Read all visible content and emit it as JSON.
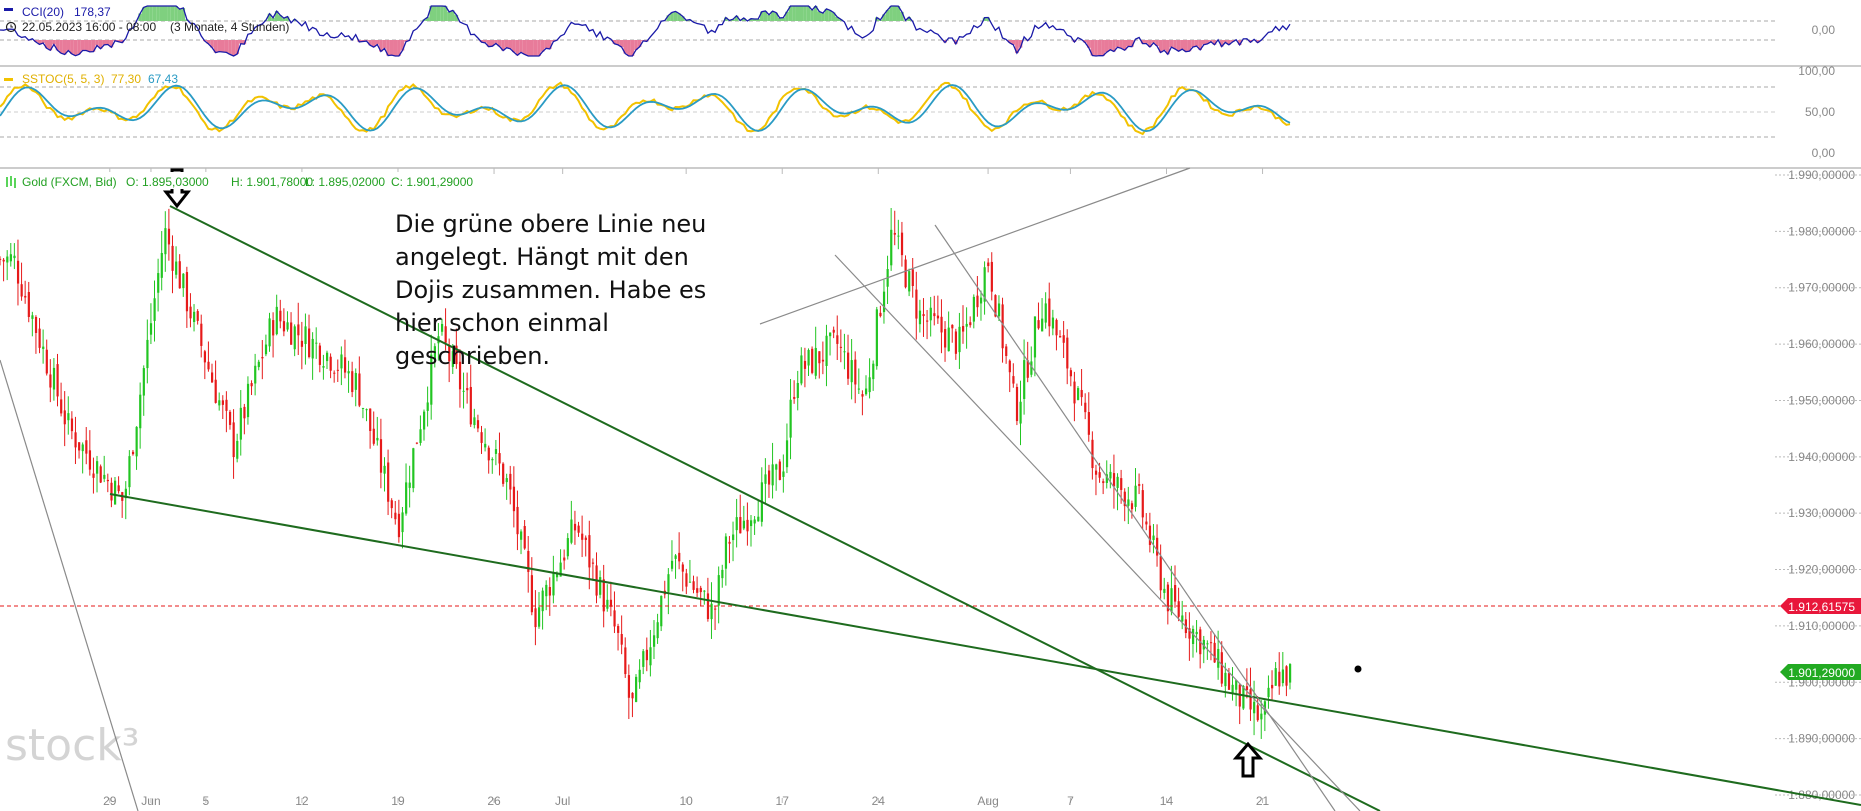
{
  "colors": {
    "cci_line": "#1a1aa8",
    "stoch_k": "#f2c200",
    "stoch_d": "#2a9bc4",
    "up": "#22c522",
    "down": "#e61a1a",
    "trend": "#1e6b1e",
    "thin": "#8a8a8a",
    "last_badge": "#22aa22",
    "level_badge": "#e8173b"
  },
  "cci": {
    "label": "CCI(20)",
    "value": "178,37",
    "date_range": "22.05.2023 16:00 - 08:00",
    "period": "(3 Monate, 4 Stunden)",
    "axis_label": "0,00"
  },
  "sstoc": {
    "label": "SSTOC(5, 5, 3)",
    "k_value": "77,30",
    "d_value": "67,43",
    "axis": [
      "100,00",
      "50,00",
      "0,00"
    ]
  },
  "main": {
    "title": "Gold (FXCM, Bid)",
    "open": "O: 1.895,03000",
    "high": "H: 1.901,78000",
    "low": "L: 1.895,02000",
    "close": "C: 1.901,29000",
    "level_badge": "1.912,61575",
    "last_badge": "1.901,29000",
    "annotation": [
      "Die grüne obere Linie neu",
      "angelegt. Hängt mit den",
      "Dojis zusammen. Habe es",
      "hier schon einmal",
      "geschrieben."
    ],
    "watermark": "stock³"
  },
  "chart_data": {
    "type": "candlestick",
    "title": "Gold (FXCM, Bid)",
    "y_ticks": [
      "1.990,00000",
      "1.980,00000",
      "1.970,00000",
      "1.960,00000",
      "1.950,00000",
      "1.940,00000",
      "1.930,00000",
      "1.920,00000",
      "1.910,00000",
      "1.900,00000",
      "1.890,00000",
      "1.880,00000"
    ],
    "x_ticks": [
      "29",
      "Jun",
      "5",
      "12",
      "19",
      "26",
      "Jul",
      "10",
      "17",
      "24",
      "Aug",
      "7",
      "14",
      "21"
    ],
    "ylim": [
      1880,
      1990
    ],
    "last_close": 1901.29,
    "horizontal_level": 1912.61575,
    "approx_close_path": [
      {
        "date": "2023-05-22",
        "close": 1975
      },
      {
        "date": "2023-05-26",
        "close": 1945
      },
      {
        "date": "2023-05-30",
        "close": 1932
      },
      {
        "date": "2023-06-02",
        "close": 1980
      },
      {
        "date": "2023-06-07",
        "close": 1942
      },
      {
        "date": "2023-06-10",
        "close": 1965
      },
      {
        "date": "2023-06-14",
        "close": 1958
      },
      {
        "date": "2023-06-16",
        "close": 1953
      },
      {
        "date": "2023-06-19",
        "close": 1928
      },
      {
        "date": "2023-06-22",
        "close": 1962
      },
      {
        "date": "2023-06-24",
        "close": 1950
      },
      {
        "date": "2023-06-27",
        "close": 1935
      },
      {
        "date": "2023-06-29",
        "close": 1912
      },
      {
        "date": "2023-07-02",
        "close": 1928
      },
      {
        "date": "2023-07-05",
        "close": 1908
      },
      {
        "date": "2023-07-06",
        "close": 1895
      },
      {
        "date": "2023-07-09",
        "close": 1922
      },
      {
        "date": "2023-07-12",
        "close": 1912
      },
      {
        "date": "2023-07-13",
        "close": 1925
      },
      {
        "date": "2023-07-17",
        "close": 1938
      },
      {
        "date": "2023-07-18",
        "close": 1955
      },
      {
        "date": "2023-07-21",
        "close": 1960
      },
      {
        "date": "2023-07-23",
        "close": 1950
      },
      {
        "date": "2023-07-25",
        "close": 1980
      },
      {
        "date": "2023-07-27",
        "close": 1965
      },
      {
        "date": "2023-07-30",
        "close": 1960
      },
      {
        "date": "2023-08-01",
        "close": 1975
      },
      {
        "date": "2023-08-03",
        "close": 1948
      },
      {
        "date": "2023-08-05",
        "close": 1968
      },
      {
        "date": "2023-08-07",
        "close": 1955
      },
      {
        "date": "2023-08-09",
        "close": 1937
      },
      {
        "date": "2023-08-12",
        "close": 1932
      },
      {
        "date": "2023-08-14",
        "close": 1915
      },
      {
        "date": "2023-08-17",
        "close": 1906
      },
      {
        "date": "2023-08-19",
        "close": 1898
      },
      {
        "date": "2023-08-21",
        "close": 1893
      },
      {
        "date": "2023-08-22",
        "close": 1901.29
      }
    ]
  }
}
